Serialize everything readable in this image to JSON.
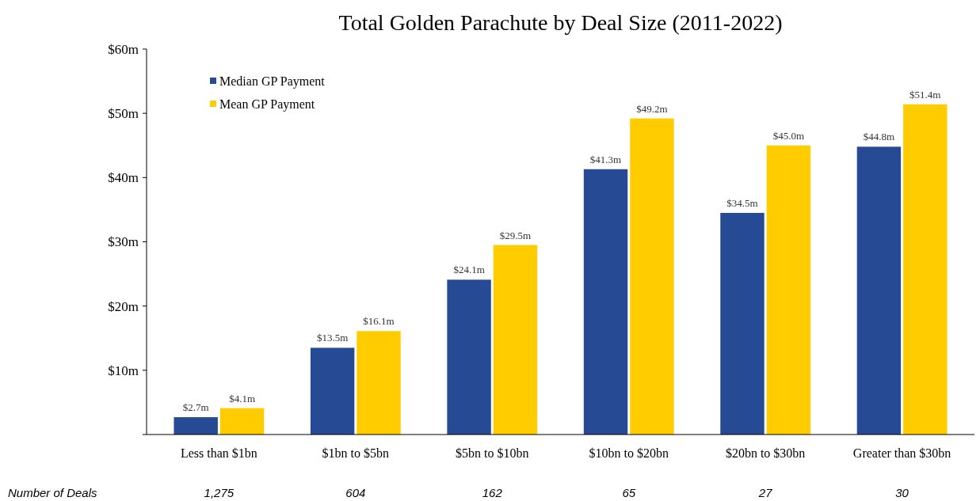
{
  "chart_data": {
    "type": "bar",
    "title": "Total Golden Parachute by Deal Size (2011-2022)",
    "categories": [
      "Less than $1bn",
      "$1bn to $5bn",
      "$5bn to $10bn",
      "$10bn to $20bn",
      "$20bn to $30bn",
      "Greater than $30bn"
    ],
    "series": [
      {
        "name": "Median GP Payment",
        "color": "#264a93",
        "values": [
          2.7,
          13.5,
          24.1,
          41.3,
          34.5,
          44.8
        ],
        "value_labels": [
          "$2.7m",
          "$13.5m",
          "$24.1m",
          "$41.3m",
          "$34.5m",
          "$44.8m"
        ]
      },
      {
        "name": "Mean GP Payment",
        "color": "#ffcc00",
        "values": [
          4.1,
          16.1,
          29.5,
          49.2,
          45.0,
          51.4
        ],
        "value_labels": [
          "$4.1m",
          "$16.1m",
          "$29.5m",
          "$49.2m",
          "$45.0m",
          "$51.4m"
        ]
      }
    ],
    "ylim": [
      0,
      60
    ],
    "yticks": [
      {
        "value": 0,
        "label": null
      },
      {
        "value": 10,
        "label": "$10m"
      },
      {
        "value": 20,
        "label": "$20m"
      },
      {
        "value": 30,
        "label": "$30m"
      },
      {
        "value": 40,
        "label": "$40m"
      },
      {
        "value": 50,
        "label": "$50m"
      },
      {
        "value": 60,
        "label": "$60m"
      }
    ],
    "legend": "top left",
    "annotations": [
      "Number of Deals",
      "1,275",
      "604",
      "162",
      "65",
      "27",
      "30"
    ]
  }
}
